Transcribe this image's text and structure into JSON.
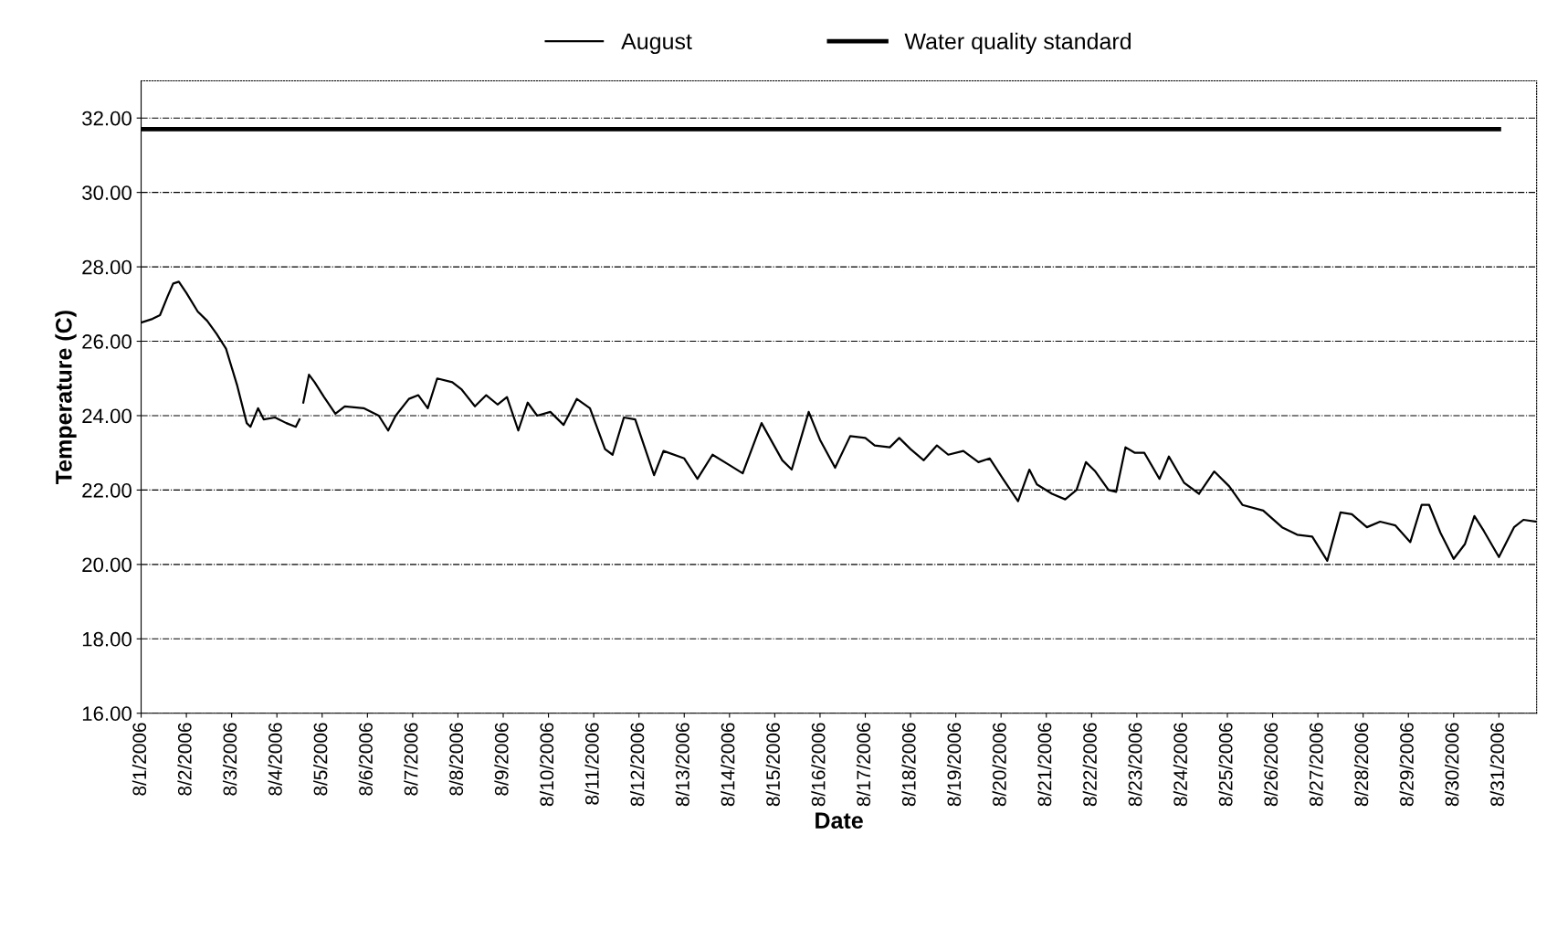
{
  "chart_data": {
    "type": "line",
    "xlabel": "Date",
    "ylabel": "Temperature (C)",
    "ylim": [
      16,
      33
    ],
    "yticks": [
      {
        "value": 16,
        "label": "16.00"
      },
      {
        "value": 18,
        "label": "18.00"
      },
      {
        "value": 20,
        "label": "20.00"
      },
      {
        "value": 22,
        "label": "22.00"
      },
      {
        "value": 24,
        "label": "24.00"
      },
      {
        "value": 26,
        "label": "26.00"
      },
      {
        "value": 28,
        "label": "28.00"
      },
      {
        "value": 30,
        "label": "30.00"
      },
      {
        "value": 32,
        "label": "32.00"
      }
    ],
    "xlim": [
      "2006-08-01",
      "2006-08-31T20:00"
    ],
    "xticks": [
      {
        "value": "2006-08-01",
        "label": "8/1/2006"
      },
      {
        "value": "2006-08-02",
        "label": "8/2/2006"
      },
      {
        "value": "2006-08-03",
        "label": "8/3/2006"
      },
      {
        "value": "2006-08-04",
        "label": "8/4/2006"
      },
      {
        "value": "2006-08-05",
        "label": "8/5/2006"
      },
      {
        "value": "2006-08-06",
        "label": "8/6/2006"
      },
      {
        "value": "2006-08-07",
        "label": "8/7/2006"
      },
      {
        "value": "2006-08-08",
        "label": "8/8/2006"
      },
      {
        "value": "2006-08-09",
        "label": "8/9/2006"
      },
      {
        "value": "2006-08-10",
        "label": "8/10/2006"
      },
      {
        "value": "2006-08-11",
        "label": "8/11/2006"
      },
      {
        "value": "2006-08-12",
        "label": "8/12/2006"
      },
      {
        "value": "2006-08-13",
        "label": "8/13/2006"
      },
      {
        "value": "2006-08-14",
        "label": "8/14/2006"
      },
      {
        "value": "2006-08-15",
        "label": "8/15/2006"
      },
      {
        "value": "2006-08-16",
        "label": "8/16/2006"
      },
      {
        "value": "2006-08-17",
        "label": "8/17/2006"
      },
      {
        "value": "2006-08-18",
        "label": "8/18/2006"
      },
      {
        "value": "2006-08-19",
        "label": "8/19/2006"
      },
      {
        "value": "2006-08-20",
        "label": "8/20/2006"
      },
      {
        "value": "2006-08-21",
        "label": "8/21/2006"
      },
      {
        "value": "2006-08-22",
        "label": "8/22/2006"
      },
      {
        "value": "2006-08-23",
        "label": "8/23/2006"
      },
      {
        "value": "2006-08-24",
        "label": "8/24/2006"
      },
      {
        "value": "2006-08-25",
        "label": "8/25/2006"
      },
      {
        "value": "2006-08-26",
        "label": "8/26/2006"
      },
      {
        "value": "2006-08-27",
        "label": "8/27/2006"
      },
      {
        "value": "2006-08-28",
        "label": "8/28/2006"
      },
      {
        "value": "2006-08-29",
        "label": "8/29/2006"
      },
      {
        "value": "2006-08-30",
        "label": "8/30/2006"
      },
      {
        "value": "2006-08-31",
        "label": "8/31/2006"
      }
    ],
    "grid": "y",
    "legend": "top",
    "marker": "none",
    "line_style": "solid",
    "series": [
      {
        "name": "August",
        "color": "#000000",
        "x": [
          "2006-08-01T00:00",
          "2006-08-01T06:00",
          "2006-08-01T10:00",
          "2006-08-01T14:00",
          "2006-08-01T17:00",
          "2006-08-01T20:00",
          "2006-08-02T00:00",
          "2006-08-02T06:00",
          "2006-08-02T11:00",
          "2006-08-02T16:00",
          "2006-08-02T21:00",
          "2006-08-03T03:00",
          "2006-08-03T08:00",
          "2006-08-03T10:00",
          "2006-08-03T14:00",
          "2006-08-03T17:00",
          "2006-08-03T23:00",
          "2006-08-04T05:00",
          "2006-08-04T10:00",
          "2006-08-04T12:00",
          "2006-08-04T13:00",
          "2006-08-04T14:00",
          "2006-08-04T17:00",
          "2006-08-04T20:00",
          "2006-08-05T01:00",
          "2006-08-05T07:00",
          "2006-08-05T12:00",
          "2006-08-05T22:00",
          "2006-08-06T06:00",
          "2006-08-06T11:00",
          "2006-08-06T15:00",
          "2006-08-06T22:00",
          "2006-08-07T03:00",
          "2006-08-07T08:00",
          "2006-08-07T13:00",
          "2006-08-07T21:00",
          "2006-08-08T02:00",
          "2006-08-08T09:00",
          "2006-08-08T15:00",
          "2006-08-08T21:00",
          "2006-08-09T02:00",
          "2006-08-09T08:00",
          "2006-08-09T13:00",
          "2006-08-09T18:00",
          "2006-08-10T01:00",
          "2006-08-10T08:00",
          "2006-08-10T15:00",
          "2006-08-10T22:00",
          "2006-08-11T06:00",
          "2006-08-11T10:00",
          "2006-08-11T16:00",
          "2006-08-11T22:00",
          "2006-08-12T03:00",
          "2006-08-12T08:00",
          "2006-08-12T13:00",
          "2006-08-13T00:00",
          "2006-08-13T07:00",
          "2006-08-13T15:00",
          "2006-08-13T23:00",
          "2006-08-14T07:00",
          "2006-08-14T17:00",
          "2006-08-15T04:00",
          "2006-08-15T09:00",
          "2006-08-15T18:00",
          "2006-08-16T00:00",
          "2006-08-16T08:00",
          "2006-08-16T16:00",
          "2006-08-17T00:00",
          "2006-08-17T05:00",
          "2006-08-17T13:00",
          "2006-08-17T18:00",
          "2006-08-18T00:00",
          "2006-08-18T07:00",
          "2006-08-18T14:00",
          "2006-08-18T20:00",
          "2006-08-19T04:00",
          "2006-08-19T12:00",
          "2006-08-19T18:00",
          "2006-08-20T01:00",
          "2006-08-20T09:00",
          "2006-08-20T15:00",
          "2006-08-20T19:00",
          "2006-08-21T03:00",
          "2006-08-21T10:00",
          "2006-08-21T16:00",
          "2006-08-21T21:00",
          "2006-08-22T02:00",
          "2006-08-22T09:00",
          "2006-08-22T13:00",
          "2006-08-22T18:00",
          "2006-08-22T23:00",
          "2006-08-23T04:00",
          "2006-08-23T12:00",
          "2006-08-23T17:00",
          "2006-08-24T01:00",
          "2006-08-24T09:00",
          "2006-08-24T17:00",
          "2006-08-25T01:00",
          "2006-08-25T08:00",
          "2006-08-25T19:00",
          "2006-08-26T05:00",
          "2006-08-26T13:00",
          "2006-08-26T21:00",
          "2006-08-27T05:00",
          "2006-08-27T12:00",
          "2006-08-27T18:00",
          "2006-08-28T02:00",
          "2006-08-28T09:00",
          "2006-08-28T17:00",
          "2006-08-29T01:00",
          "2006-08-29T07:00",
          "2006-08-29T11:00",
          "2006-08-29T17:00",
          "2006-08-30T00:00",
          "2006-08-30T06:00",
          "2006-08-30T11:00",
          "2006-08-30T16:00",
          "2006-08-31T00:00",
          "2006-08-31T08:00",
          "2006-08-31T13:00",
          "2006-08-31T20:00"
        ],
        "values": [
          26.5,
          26.6,
          26.7,
          27.2,
          27.55,
          27.6,
          27.3,
          26.8,
          26.55,
          26.2,
          25.8,
          24.8,
          23.8,
          23.7,
          24.2,
          23.9,
          23.95,
          23.8,
          23.7,
          23.9,
          null,
          24.35,
          25.1,
          24.9,
          24.5,
          24.05,
          24.25,
          24.2,
          24.0,
          23.6,
          24.0,
          24.45,
          24.55,
          24.2,
          25.0,
          24.9,
          24.7,
          24.25,
          24.55,
          24.3,
          24.5,
          23.6,
          24.35,
          24.0,
          24.1,
          23.75,
          24.45,
          24.2,
          23.1,
          22.95,
          23.95,
          23.9,
          23.15,
          22.4,
          23.05,
          22.85,
          22.3,
          22.95,
          22.7,
          22.45,
          23.8,
          22.8,
          22.55,
          24.1,
          23.35,
          22.6,
          23.45,
          23.4,
          23.2,
          23.15,
          23.4,
          23.1,
          22.8,
          23.2,
          22.95,
          23.05,
          22.75,
          22.85,
          22.3,
          21.7,
          22.55,
          22.15,
          21.9,
          21.75,
          22.0,
          22.75,
          22.5,
          22.0,
          21.95,
          23.15,
          23.0,
          23.0,
          22.3,
          22.9,
          22.2,
          21.9,
          22.5,
          22.1,
          21.6,
          21.45,
          21.0,
          20.8,
          20.75,
          20.1,
          21.4,
          21.35,
          21.0,
          21.15,
          21.05,
          20.6,
          21.6,
          21.6,
          20.85,
          20.15,
          20.55,
          21.3,
          20.9,
          20.2,
          21.0,
          21.2,
          21.15
        ]
      },
      {
        "name": "Water quality standard",
        "color": "#000000",
        "x": [
          "2006-08-01T00:00",
          "2006-08-31T00:00"
        ],
        "values": [
          31.7,
          31.7
        ]
      }
    ]
  }
}
